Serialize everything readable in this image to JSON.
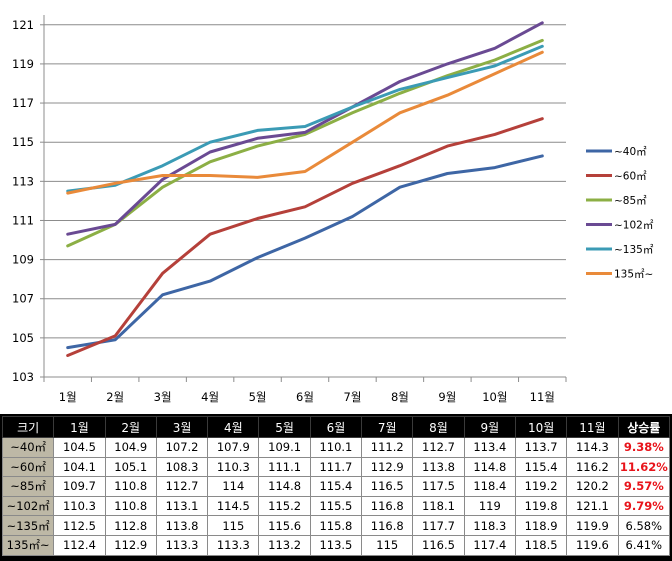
{
  "chart_data": {
    "type": "line",
    "categories": [
      "1월",
      "2월",
      "3월",
      "4월",
      "5월",
      "6월",
      "7월",
      "8월",
      "9월",
      "10월",
      "11월"
    ],
    "ylim": [
      103,
      121.5
    ],
    "yticks": [
      103,
      105,
      107,
      109,
      111,
      113,
      115,
      117,
      119,
      121
    ],
    "grid": true,
    "legend_position": "right",
    "series": [
      {
        "name": "~40㎡",
        "color": "#3e66a5",
        "values": [
          104.5,
          104.9,
          107.2,
          107.9,
          109.1,
          110.1,
          111.2,
          112.7,
          113.4,
          113.7,
          114.3
        ]
      },
      {
        "name": "~60㎡",
        "color": "#b5403a",
        "values": [
          104.1,
          105.1,
          108.3,
          110.3,
          111.1,
          111.7,
          112.9,
          113.8,
          114.8,
          115.4,
          116.2
        ]
      },
      {
        "name": "~85㎡",
        "color": "#8caf45",
        "values": [
          109.7,
          110.8,
          112.7,
          114,
          114.8,
          115.4,
          116.5,
          117.5,
          118.4,
          119.2,
          120.2
        ]
      },
      {
        "name": "~102㎡",
        "color": "#6a4a93",
        "values": [
          110.3,
          110.8,
          113.1,
          114.5,
          115.2,
          115.5,
          116.8,
          118.1,
          119,
          119.8,
          121.1
        ]
      },
      {
        "name": "~135㎡",
        "color": "#3b9bb5",
        "values": [
          112.5,
          112.8,
          113.8,
          115,
          115.6,
          115.8,
          116.8,
          117.7,
          118.3,
          118.9,
          119.9
        ]
      },
      {
        "name": "135㎡~",
        "color": "#e98a3a",
        "values": [
          112.4,
          112.9,
          113.3,
          113.3,
          113.2,
          113.5,
          115,
          116.5,
          117.4,
          118.5,
          119.6
        ]
      }
    ]
  },
  "table": {
    "header": [
      "크기",
      "1월",
      "2월",
      "3월",
      "4월",
      "5월",
      "6월",
      "7월",
      "8월",
      "9월",
      "10월",
      "11월",
      "상승률"
    ],
    "rows": [
      {
        "label": "~40㎡",
        "values": [
          "104.5",
          "104.9",
          "107.2",
          "107.9",
          "109.1",
          "110.1",
          "111.2",
          "112.7",
          "113.4",
          "113.7",
          "114.3"
        ],
        "rate": "9.38%",
        "highlight": true
      },
      {
        "label": "~60㎡",
        "values": [
          "104.1",
          "105.1",
          "108.3",
          "110.3",
          "111.1",
          "111.7",
          "112.9",
          "113.8",
          "114.8",
          "115.4",
          "116.2"
        ],
        "rate": "11.62%",
        "highlight": true
      },
      {
        "label": "~85㎡",
        "values": [
          "109.7",
          "110.8",
          "112.7",
          "114",
          "114.8",
          "115.4",
          "116.5",
          "117.5",
          "118.4",
          "119.2",
          "120.2"
        ],
        "rate": "9.57%",
        "highlight": true
      },
      {
        "label": "~102㎡",
        "values": [
          "110.3",
          "110.8",
          "113.1",
          "114.5",
          "115.2",
          "115.5",
          "116.8",
          "118.1",
          "119",
          "119.8",
          "121.1"
        ],
        "rate": "9.79%",
        "highlight": true
      },
      {
        "label": "~135㎡",
        "values": [
          "112.5",
          "112.8",
          "113.8",
          "115",
          "115.6",
          "115.8",
          "116.8",
          "117.7",
          "118.3",
          "118.9",
          "119.9"
        ],
        "rate": "6.58%",
        "highlight": false
      },
      {
        "label": "135㎡~",
        "values": [
          "112.4",
          "112.9",
          "113.3",
          "113.3",
          "113.2",
          "113.5",
          "115",
          "116.5",
          "117.4",
          "118.5",
          "119.6"
        ],
        "rate": "6.41%",
        "highlight": false
      }
    ]
  }
}
